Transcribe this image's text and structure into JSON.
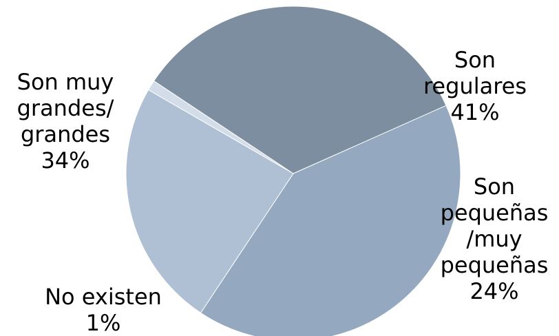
{
  "chart_data": {
    "type": "pie",
    "title": "",
    "start_angle_deg": -24,
    "direction": "clockwise",
    "slices": [
      {
        "name": "Son regulares",
        "label_lines": [
          "Son",
          "regulares"
        ],
        "value": 41,
        "value_label": "41%",
        "color": "#94a8bf"
      },
      {
        "name": "Son pequeñas/muy pequeñas",
        "label_lines": [
          "Son",
          "pequeñas",
          "/muy",
          "pequeñas"
        ],
        "value": 24,
        "value_label": "24%",
        "color": "#afc0d5"
      },
      {
        "name": "No existen",
        "label_lines": [
          "No existen"
        ],
        "value": 1,
        "value_label": "1%",
        "color": "#d3dde9"
      },
      {
        "name": "Son muy grandes/grandes",
        "label_lines": [
          "Son muy",
          "grandes/",
          "grandes"
        ],
        "value": 34,
        "value_label": "34%",
        "color": "#7c8e9f"
      }
    ]
  }
}
